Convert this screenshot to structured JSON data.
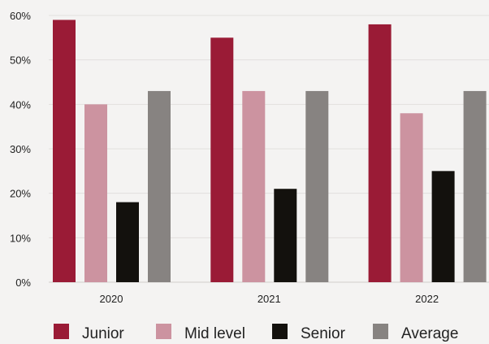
{
  "chart_data": {
    "type": "bar",
    "title": "",
    "xlabel": "",
    "ylabel": "",
    "categories": [
      "2020",
      "2021",
      "2022"
    ],
    "series": [
      {
        "name": "Junior",
        "values": [
          59,
          55,
          58
        ],
        "color": "#9a1b36"
      },
      {
        "name": "Mid level",
        "values": [
          40,
          43,
          38
        ],
        "color": "#cc93a0"
      },
      {
        "name": "Senior",
        "values": [
          18,
          21,
          25
        ],
        "color": "#13110d"
      },
      {
        "name": "Average",
        "values": [
          43,
          43,
          43
        ],
        "color": "#878381"
      }
    ],
    "ylim": [
      0,
      60
    ],
    "yticks": [
      0,
      10,
      20,
      30,
      40,
      50,
      60
    ],
    "ytick_labels": [
      "0%",
      "10%",
      "20%",
      "30%",
      "40%",
      "50%",
      "60%"
    ],
    "grid": true,
    "legend_position": "bottom"
  }
}
